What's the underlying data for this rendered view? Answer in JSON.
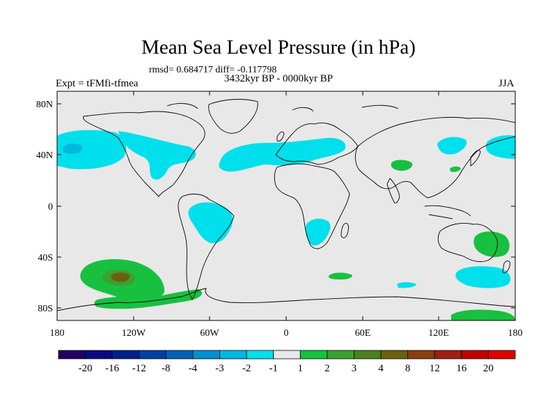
{
  "title": "Mean Sea Level Pressure (in hPa)",
  "stats": "rmsd= 0.684717 diff= -0.117798",
  "period": "3432kyr BP - 0000kyr BP",
  "experiment": "Expt = tFMfi-tfmea",
  "season": "JJA",
  "map": {
    "projection": "cylindrical-equidistant",
    "lon_range": [
      -180,
      180
    ],
    "lat_range": [
      -90,
      90
    ],
    "x_ticks": [
      "180",
      "120W",
      "60W",
      "0",
      "60E",
      "120E",
      "180"
    ],
    "y_ticks": [
      "80N",
      "40N",
      "0",
      "40S",
      "80S"
    ],
    "background_color": "#e8e8e8"
  },
  "colorbar": {
    "labels": [
      "-20",
      "-16",
      "-12",
      "-8",
      "-4",
      "-3",
      "-2",
      "-1",
      "1",
      "2",
      "3",
      "4",
      "8",
      "12",
      "16",
      "20"
    ],
    "colors": [
      "#200060",
      "#0a0a80",
      "#00208c",
      "#0040a0",
      "#0060b4",
      "#0090d0",
      "#00b8e0",
      "#00e0ec",
      "#e8e8e8",
      "#18c040",
      "#3ca030",
      "#4c8020",
      "#6c6010",
      "#884010",
      "#a02010",
      "#c00000",
      "#e00000"
    ]
  },
  "legend_levels_colors": {
    "negative_light": "#00e0ec",
    "negative_medium": "#00b8e0",
    "negative_strong": "#0090d0",
    "positive_light": "#18c040",
    "positive_medium": "#3ca030",
    "positive_strong": "#6c6010"
  }
}
